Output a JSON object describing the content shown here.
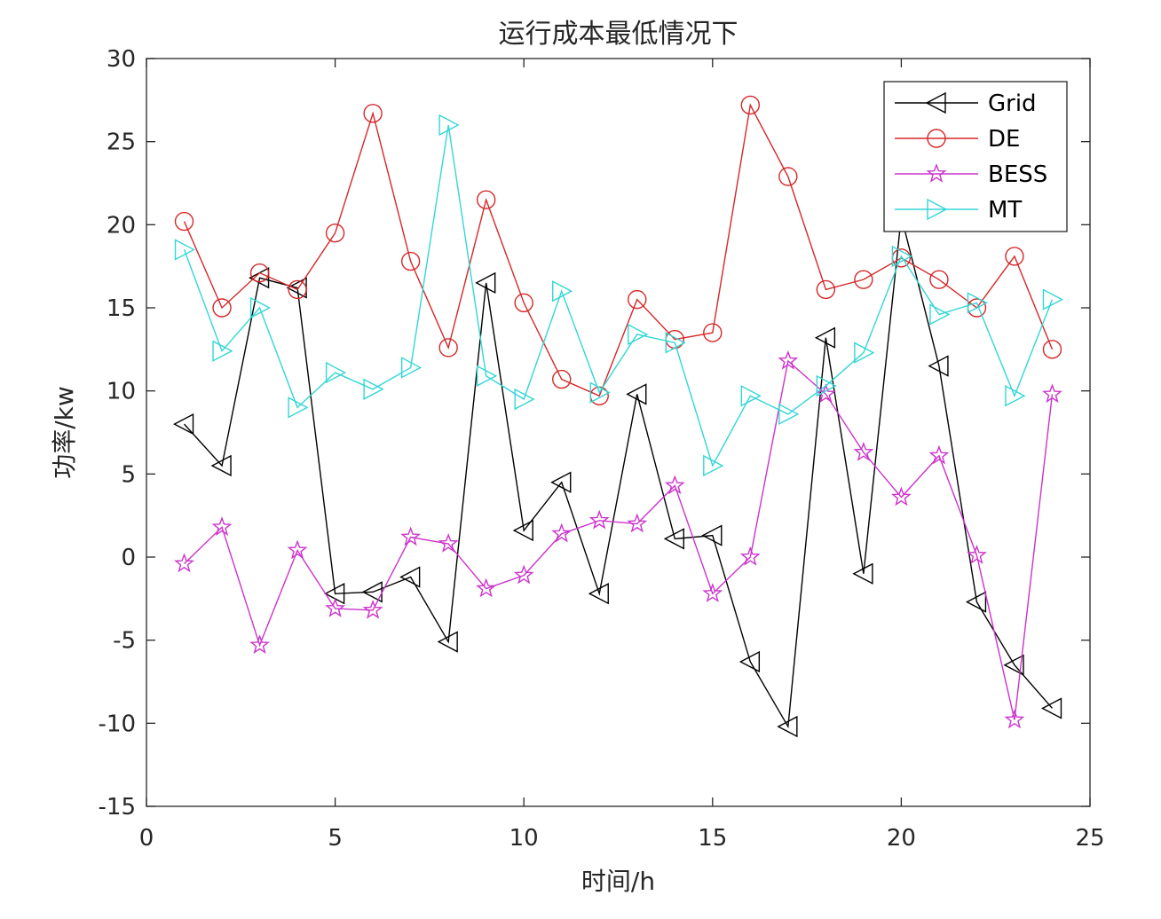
{
  "chart_data": {
    "type": "line",
    "title": "运行成本最低情况下",
    "xlabel": "时间/h",
    "ylabel": "功率/kw",
    "xlim": [
      0,
      25
    ],
    "ylim": [
      -15,
      30
    ],
    "xticks": [
      0,
      5,
      10,
      15,
      20,
      25
    ],
    "yticks": [
      -15,
      -10,
      -5,
      0,
      5,
      10,
      15,
      20,
      25,
      30
    ],
    "grid": false,
    "legend_position": "top-right",
    "x": [
      1,
      2,
      3,
      4,
      5,
      6,
      7,
      8,
      9,
      10,
      11,
      12,
      13,
      14,
      15,
      16,
      17,
      18,
      19,
      20,
      21,
      22,
      23,
      24
    ],
    "series": [
      {
        "name": "Grid",
        "color": "#000000",
        "marker": "triangle-left",
        "values": [
          8.0,
          5.5,
          16.8,
          16.2,
          -2.2,
          -2.1,
          -1.2,
          -5.1,
          16.5,
          1.6,
          4.5,
          -2.2,
          9.8,
          1.1,
          1.3,
          -6.3,
          -10.2,
          13.2,
          -1.0,
          20.5,
          11.5,
          -2.7,
          -6.5,
          -9.1
        ]
      },
      {
        "name": "DE",
        "color": "#d62728",
        "marker": "circle",
        "values": [
          20.2,
          15.0,
          17.1,
          16.1,
          19.5,
          26.7,
          17.8,
          12.6,
          21.5,
          15.3,
          10.7,
          9.7,
          15.5,
          13.1,
          13.5,
          27.2,
          22.9,
          16.1,
          16.7,
          18.0,
          16.7,
          15.0,
          18.1,
          12.5
        ]
      },
      {
        "name": "BESS",
        "color": "#cc33cc",
        "marker": "star",
        "values": [
          -0.4,
          1.8,
          -5.3,
          0.4,
          -3.1,
          -3.2,
          1.2,
          0.8,
          -1.9,
          -1.1,
          1.4,
          2.2,
          2.0,
          4.3,
          -2.2,
          0.0,
          11.8,
          9.8,
          6.3,
          3.6,
          6.1,
          0.1,
          -9.8,
          9.8
        ]
      },
      {
        "name": "MT",
        "color": "#33d6d6",
        "marker": "triangle-right",
        "values": [
          18.5,
          12.4,
          15.0,
          9.0,
          11.1,
          10.1,
          11.4,
          26.0,
          10.9,
          9.5,
          16.0,
          9.9,
          13.4,
          12.9,
          5.5,
          9.7,
          8.6,
          10.3,
          12.3,
          18.1,
          14.6,
          15.3,
          9.7,
          15.5
        ]
      }
    ]
  }
}
